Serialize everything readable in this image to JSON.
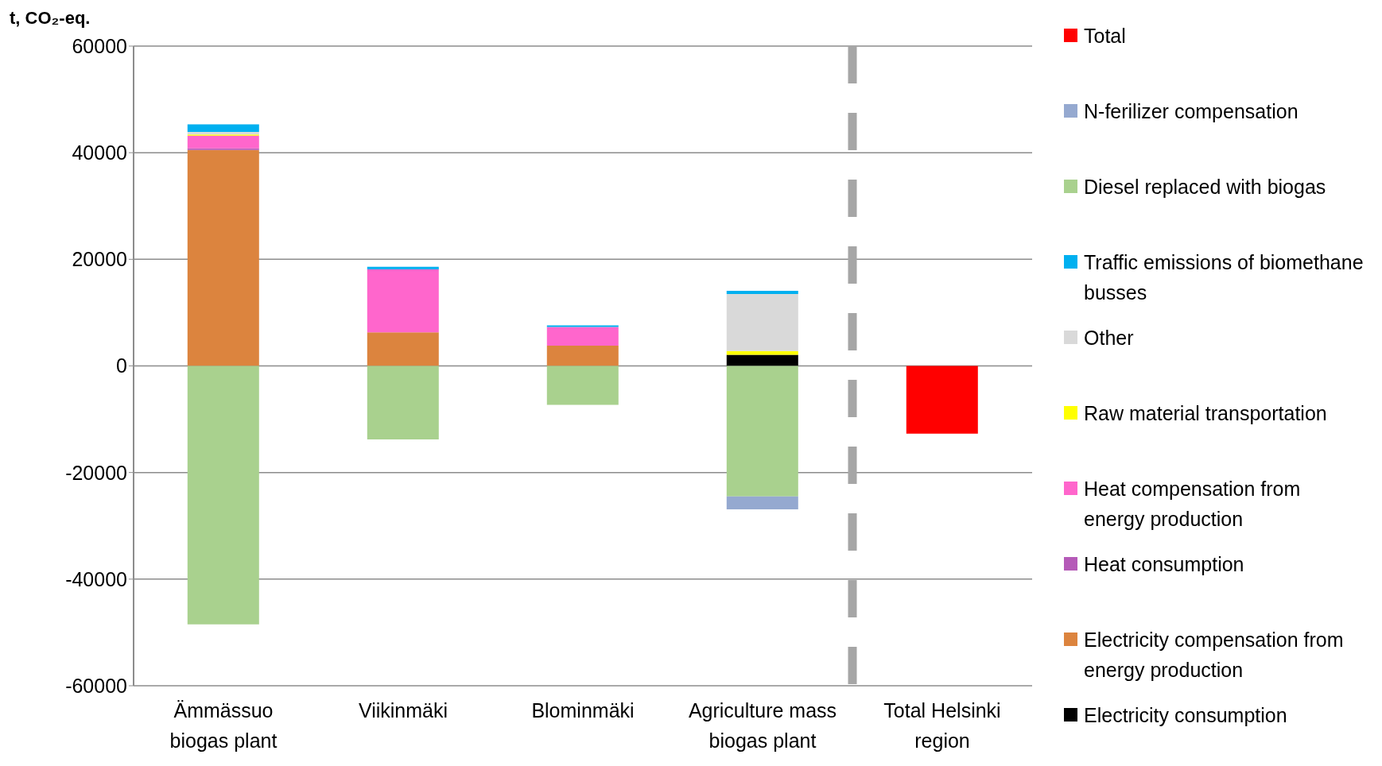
{
  "chart_data": {
    "type": "bar",
    "stacked": true,
    "ylabel": "t, CO₂-eq.",
    "categories": [
      "Ämmässuo biogas plant",
      "Viikinmäki",
      "Blominmäki",
      "Agriculture mass biogas plant",
      "Total Helsinki region"
    ],
    "series": [
      {
        "name": "Electricity consumption",
        "color": "#000000",
        "values": [
          null,
          null,
          null,
          2100,
          null
        ]
      },
      {
        "name": "Electricity compensation from energy production",
        "color": "#dc843e",
        "values": [
          40500,
          6300,
          3800,
          null,
          null
        ]
      },
      {
        "name": "Heat consumption",
        "color": "#b55ab8",
        "values": [
          300,
          null,
          null,
          null,
          null
        ]
      },
      {
        "name": "Heat compensation from energy production",
        "color": "#ff66cc",
        "values": [
          2400,
          11800,
          3500,
          null,
          null
        ]
      },
      {
        "name": "Raw material transportation",
        "color": "#ffff00",
        "values": [
          200,
          null,
          null,
          700,
          null
        ]
      },
      {
        "name": "Other",
        "color": "#d9d9d9",
        "values": [
          500,
          null,
          null,
          10700,
          null
        ]
      },
      {
        "name": "Traffic emissions of biomethane busses",
        "color": "#00b0f0",
        "values": [
          1400,
          500,
          300,
          600,
          null
        ]
      },
      {
        "name": "Diesel replaced with biogas",
        "color": "#a9d18e",
        "values": [
          -48500,
          -13800,
          -7300,
          -24500,
          null
        ]
      },
      {
        "name": "N-ferilizer compensation",
        "color": "#95a9d0",
        "values": [
          null,
          null,
          null,
          -2400,
          null
        ]
      },
      {
        "name": "Total",
        "color": "#ff0000",
        "values": [
          null,
          null,
          null,
          null,
          -12700
        ]
      }
    ],
    "ylim": [
      -60000,
      60000
    ],
    "yticks": [
      -60000,
      -40000,
      -20000,
      0,
      20000,
      40000,
      60000
    ],
    "grid": "y",
    "legend": "right"
  }
}
